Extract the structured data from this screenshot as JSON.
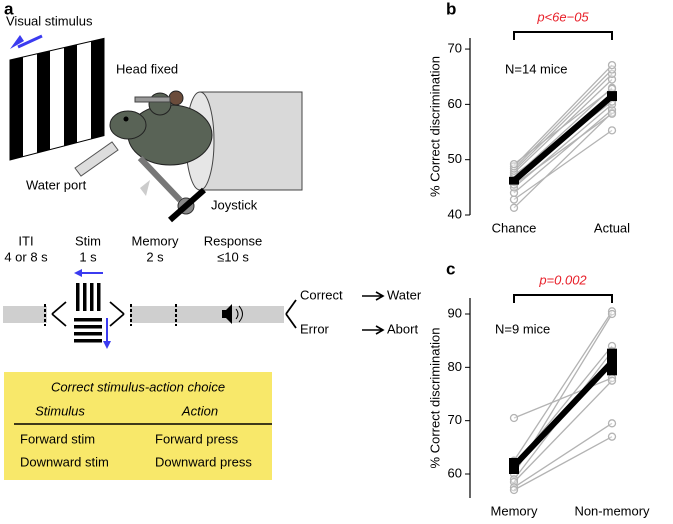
{
  "diagram": {
    "panel": "a",
    "visual_stimulus": "Visual stimulus",
    "head_fixed": "Head fixed",
    "water_port": "Water port",
    "joystick": "Joystick",
    "epochs": [
      {
        "name": "ITI",
        "duration": "4 or 8 s"
      },
      {
        "name": "Stim",
        "duration": "1 s"
      },
      {
        "name": "Memory",
        "duration": "2 s"
      },
      {
        "name": "Response",
        "duration": "≤10 s"
      }
    ],
    "outcomes": [
      {
        "response": "Correct",
        "result": "Water"
      },
      {
        "response": "Error",
        "result": "Abort"
      }
    ],
    "table": {
      "title": "Correct stimulus-action choice",
      "headers": [
        "Stimulus",
        "Action"
      ],
      "rows": [
        [
          "Forward stim",
          "Forward press"
        ],
        [
          "Downward stim",
          "Downward press"
        ]
      ]
    }
  },
  "chart_data": [
    {
      "type": "line",
      "panel": "b",
      "annotation": "p<6e−05",
      "annotation_color": "#e8202a",
      "note": "N=14 mice",
      "ylabel": "% Correct discrimination",
      "categories": [
        "Chance",
        "Actual"
      ],
      "ylim": [
        40,
        72
      ],
      "yticks": [
        40,
        50,
        60,
        70
      ],
      "series": [
        {
          "color": "#b3b3b3",
          "values": [
            41.3,
            58.5
          ]
        },
        {
          "color": "#b3b3b3",
          "values": [
            42.8,
            55.3
          ]
        },
        {
          "color": "#b3b3b3",
          "values": [
            44.0,
            59.0
          ]
        },
        {
          "color": "#b3b3b3",
          "values": [
            45.0,
            60.0
          ]
        },
        {
          "color": "#b3b3b3",
          "values": [
            45.5,
            58.3
          ]
        },
        {
          "color": "#b3b3b3",
          "values": [
            46.0,
            61.5
          ]
        },
        {
          "color": "#b3b3b3",
          "values": [
            46.4,
            62.0
          ]
        },
        {
          "color": "#b3b3b3",
          "values": [
            46.8,
            63.0
          ]
        },
        {
          "color": "#b3b3b3",
          "values": [
            47.2,
            60.5
          ]
        },
        {
          "color": "#b3b3b3",
          "values": [
            47.6,
            64.5
          ]
        },
        {
          "color": "#b3b3b3",
          "values": [
            48.0,
            65.5
          ]
        },
        {
          "color": "#b3b3b3",
          "values": [
            48.4,
            66.3
          ]
        },
        {
          "color": "#b3b3b3",
          "values": [
            48.8,
            67.1
          ]
        },
        {
          "color": "#b3b3b3",
          "values": [
            49.2,
            62.8
          ]
        }
      ],
      "mean": {
        "color": "#000000",
        "values": [
          46.2,
          61.5
        ],
        "errors": [
          0.7,
          0.9
        ]
      }
    },
    {
      "type": "line",
      "panel": "c",
      "annotation": "p=0.002",
      "annotation_color": "#e8202a",
      "note": "N=9 mice",
      "ylabel": "% Correct discrimination",
      "categories": [
        "Memory",
        "Non-memory"
      ],
      "ylim": [
        55.5,
        93
      ],
      "yticks": [
        60,
        70,
        80,
        90
      ],
      "series": [
        {
          "color": "#b3b3b3",
          "values": [
            70.5,
            78.0
          ]
        },
        {
          "color": "#b3b3b3",
          "values": [
            62.5,
            90.5
          ]
        },
        {
          "color": "#b3b3b3",
          "values": [
            61.5,
            84.0
          ]
        },
        {
          "color": "#b3b3b3",
          "values": [
            60.0,
            90.0
          ]
        },
        {
          "color": "#b3b3b3",
          "values": [
            59.0,
            83.0
          ]
        },
        {
          "color": "#b3b3b3",
          "values": [
            58.5,
            77.5
          ]
        },
        {
          "color": "#b3b3b3",
          "values": [
            57.5,
            69.5
          ]
        },
        {
          "color": "#b3b3b3",
          "values": [
            57.0,
            67.0
          ]
        },
        {
          "color": "#b3b3b3",
          "values": [
            62.0,
            81.0
          ]
        }
      ],
      "mean": {
        "color": "#000000",
        "values": [
          61.5,
          81.0
        ],
        "errors": [
          1.5,
          2.5
        ]
      }
    }
  ]
}
